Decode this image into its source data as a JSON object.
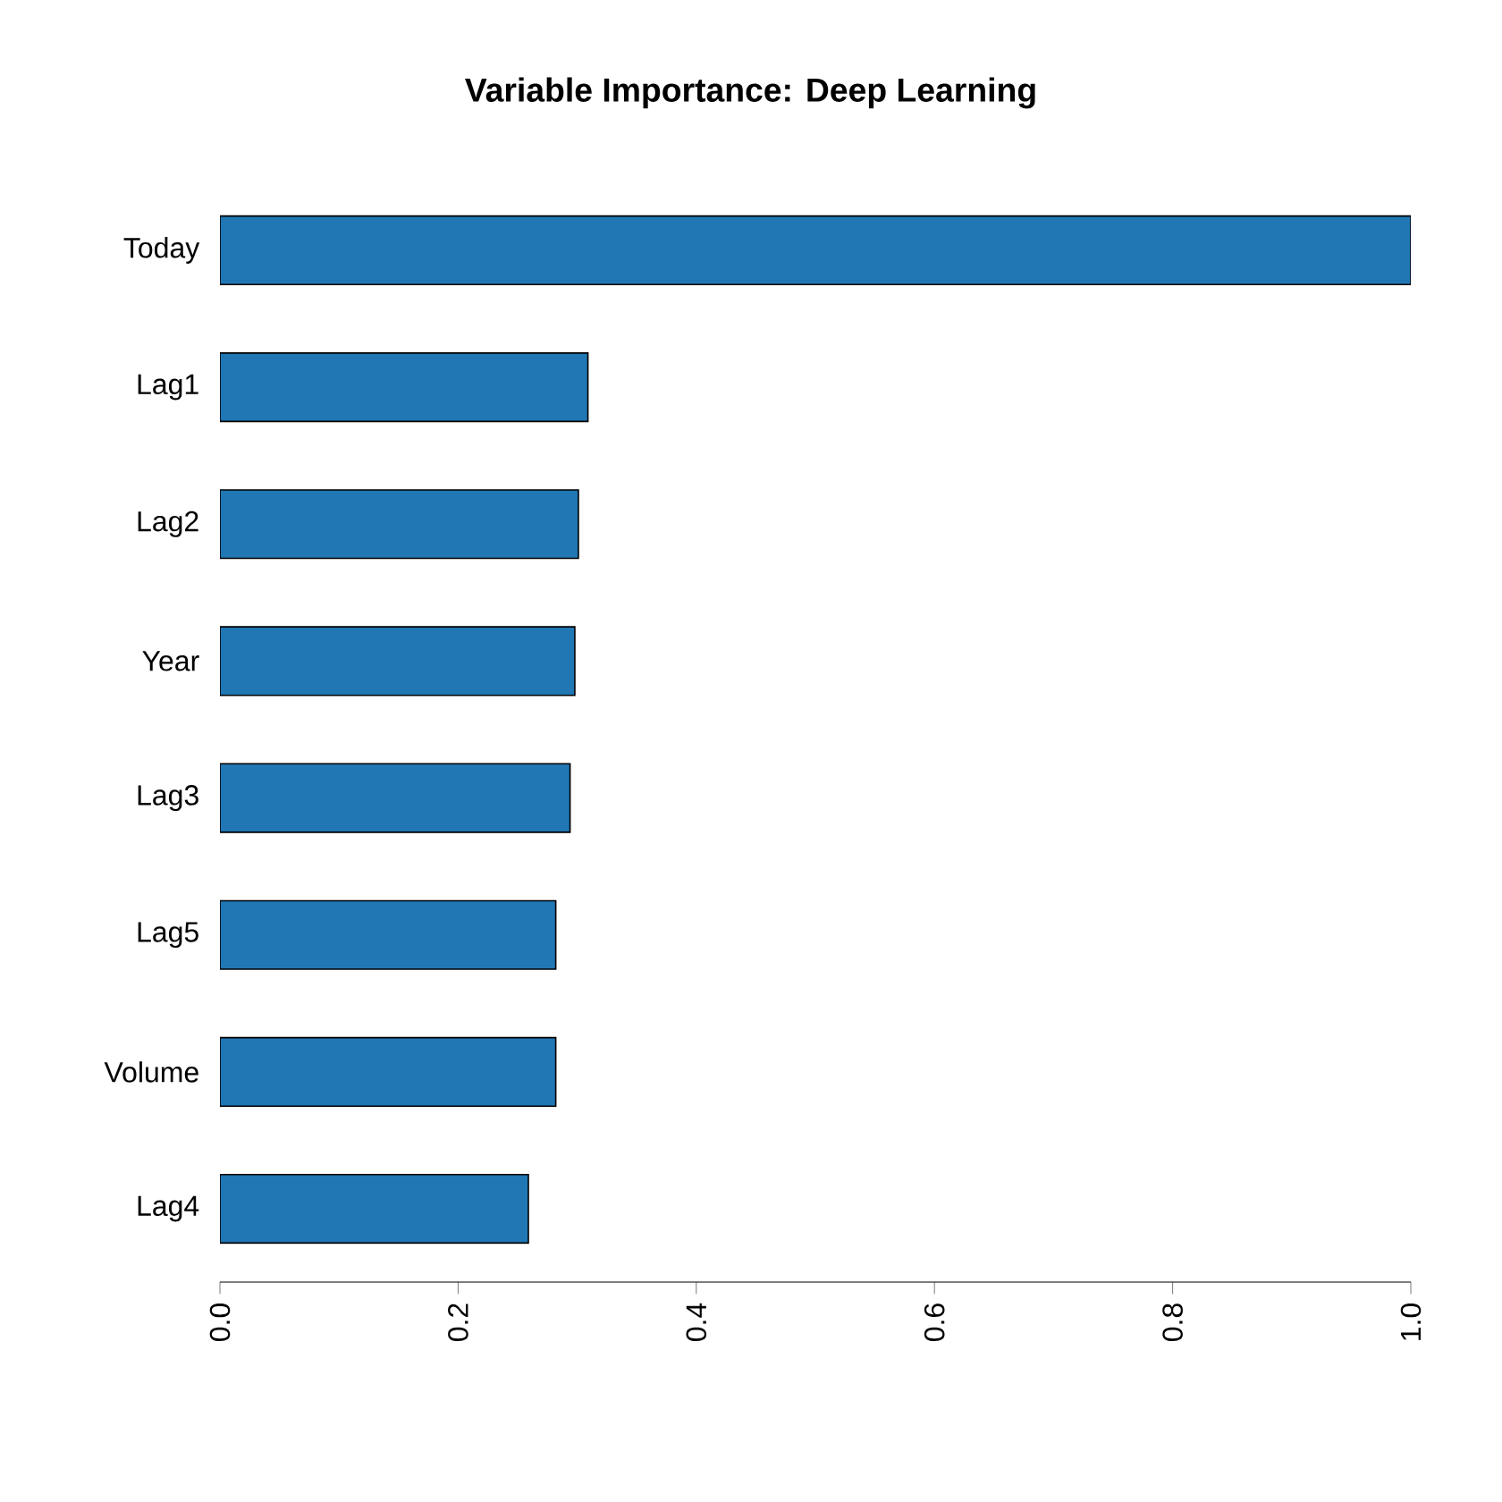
{
  "chart_data": {
    "type": "bar",
    "orientation": "horizontal",
    "title": "Variable Importance: Deep Learning",
    "categories": [
      "Today",
      "Lag1",
      "Lag2",
      "Year",
      "Lag3",
      "Lag5",
      "Volume",
      "Lag4"
    ],
    "values": [
      1.0,
      0.309,
      0.301,
      0.298,
      0.294,
      0.282,
      0.282,
      0.259
    ],
    "color": "#2077b4",
    "xlim": [
      0,
      1
    ],
    "xticks": [
      {
        "value": 0,
        "label": "0.0"
      },
      {
        "value": 0.2,
        "label": "0.2"
      },
      {
        "value": 0.4,
        "label": "0.4"
      },
      {
        "value": 0.6,
        "label": "0.6"
      },
      {
        "value": 0.8,
        "label": "0.8"
      },
      {
        "value": 1,
        "label": "1.0"
      }
    ]
  }
}
